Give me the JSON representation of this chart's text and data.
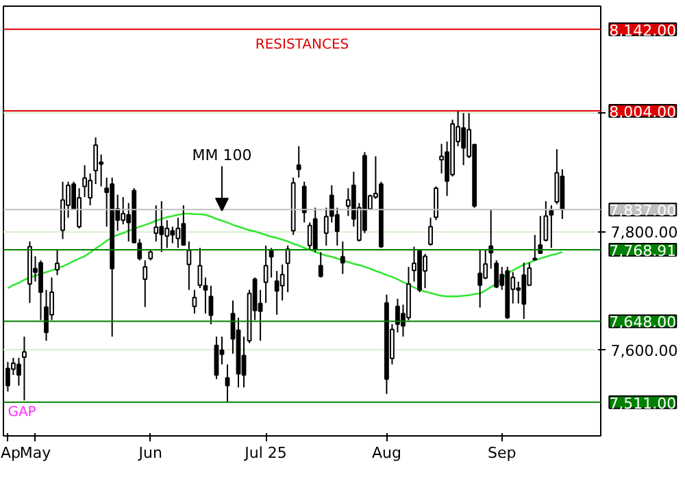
{
  "chart_data": {
    "type": "candlestick",
    "annotations": [
      "RESISTANCES",
      {
        "text": "GAP",
        "y": 7511
      }
    ],
    "categories": [
      "Ap",
      null,
      null,
      null,
      null,
      "May",
      null,
      null,
      null,
      null,
      null,
      null,
      null,
      null,
      null,
      null,
      null,
      null,
      null,
      null,
      null,
      null,
      null,
      null,
      null,
      null,
      "Jun",
      null,
      null,
      null,
      null,
      null,
      null,
      null,
      null,
      null,
      null,
      null,
      null,
      null,
      null,
      null,
      null,
      null,
      null,
      null,
      null,
      "Jul 25",
      null,
      null,
      null,
      null,
      null,
      null,
      null,
      null,
      null,
      null,
      null,
      null,
      null,
      null,
      null,
      null,
      null,
      null,
      null,
      null,
      null,
      "Aug",
      null,
      null,
      null,
      null,
      null,
      null,
      null,
      null,
      null,
      null,
      null,
      null,
      null,
      null,
      null,
      null,
      null,
      null,
      null,
      null,
      "Sep",
      null,
      null,
      null,
      null,
      null,
      null,
      null,
      null,
      null,
      null,
      null
    ],
    "ohlc": [
      [
        7568,
        7579,
        7529,
        7539
      ],
      [
        7567,
        7586,
        7557,
        7577
      ],
      [
        7575,
        7586,
        7539,
        7557
      ],
      [
        7587,
        7622,
        7514,
        7596
      ],
      [
        7711,
        7783,
        7679,
        7774
      ],
      [
        7737,
        7758,
        7715,
        7731
      ],
      [
        7747,
        7751,
        7650,
        7697
      ],
      [
        7672,
        7701,
        7615,
        7629
      ],
      [
        7659,
        7722,
        7650,
        7697
      ],
      [
        7735,
        7769,
        7726,
        7746
      ],
      [
        7802,
        7884,
        7787,
        7853
      ],
      [
        7844,
        7884,
        7823,
        7878
      ],
      [
        7880,
        7884,
        7837,
        7838
      ],
      [
        7808,
        7873,
        7805,
        7857
      ],
      [
        7876,
        7912,
        7858,
        7890
      ],
      [
        7857,
        7898,
        7844,
        7886
      ],
      [
        7903,
        7959,
        7880,
        7946
      ],
      [
        7917,
        7930,
        7876,
        7914
      ],
      [
        7873,
        7891,
        7808,
        7866
      ],
      [
        7880,
        7891,
        7622,
        7737
      ],
      [
        7838,
        7862,
        7801,
        7819
      ],
      [
        7819,
        7858,
        7812,
        7830
      ],
      [
        7828,
        7848,
        7783,
        7815
      ],
      [
        7869,
        7873,
        7780,
        7781
      ],
      [
        7780,
        7787,
        7751,
        7754
      ],
      [
        7719,
        7751,
        7672,
        7740
      ],
      [
        7754,
        7769,
        7751,
        7765
      ],
      [
        7797,
        7844,
        7783,
        7807
      ],
      [
        7808,
        7851,
        7765,
        7795
      ],
      [
        7792,
        7819,
        7772,
        7805
      ],
      [
        7801,
        7808,
        7780,
        7794
      ],
      [
        7788,
        7823,
        7772,
        7805
      ],
      [
        7813,
        7844,
        7776,
        7777
      ],
      [
        7744,
        7783,
        7701,
        7768
      ],
      [
        7673,
        7701,
        7661,
        7688
      ],
      [
        7709,
        7772,
        7704,
        7742
      ],
      [
        7708,
        7722,
        7661,
        7701
      ],
      [
        7690,
        7708,
        7643,
        7658
      ],
      [
        7607,
        7622,
        7550,
        7557
      ],
      [
        7599,
        7622,
        7575,
        7592
      ],
      [
        7552,
        7575,
        7511,
        7539
      ],
      [
        7661,
        7683,
        7593,
        7618
      ],
      [
        7633,
        7654,
        7536,
        7559
      ],
      [
        7590,
        7622,
        7536,
        7557
      ],
      [
        7615,
        7701,
        7611,
        7695
      ],
      [
        7719,
        7722,
        7650,
        7666
      ],
      [
        7678,
        7701,
        7615,
        7665
      ],
      [
        7714,
        7776,
        7679,
        7742
      ],
      [
        7767,
        7772,
        7722,
        7757
      ],
      [
        7716,
        7733,
        7659,
        7699
      ],
      [
        7708,
        7744,
        7683,
        7727
      ],
      [
        7746,
        7776,
        7697,
        7770
      ],
      [
        7801,
        7891,
        7794,
        7882
      ],
      [
        7912,
        7944,
        7891,
        7905
      ],
      [
        7876,
        7884,
        7815,
        7832
      ],
      [
        7776,
        7815,
        7769,
        7810
      ],
      [
        7821,
        7840,
        7765,
        7770
      ],
      [
        7742,
        7765,
        7722,
        7724
      ],
      [
        7797,
        7840,
        7776,
        7825
      ],
      [
        7861,
        7878,
        7815,
        7826
      ],
      [
        7828,
        7840,
        7776,
        7800
      ],
      [
        7757,
        7783,
        7728,
        7747
      ],
      [
        7843,
        7873,
        7826,
        7853
      ],
      [
        7878,
        7901,
        7808,
        7821
      ],
      [
        7785,
        7848,
        7783,
        7840
      ],
      [
        7928,
        7934,
        7797,
        7802
      ],
      [
        7838,
        7862,
        7837,
        7860
      ],
      [
        7858,
        7927,
        7855,
        7864
      ],
      [
        7880,
        7884,
        7772,
        7774
      ],
      [
        7679,
        7693,
        7525,
        7550
      ],
      [
        7585,
        7643,
        7575,
        7634
      ],
      [
        7673,
        7686,
        7629,
        7643
      ],
      [
        7661,
        7676,
        7622,
        7640
      ],
      [
        7654,
        7740,
        7650,
        7711
      ],
      [
        7734,
        7774,
        7715,
        7746
      ],
      [
        7767,
        7769,
        7697,
        7701
      ],
      [
        7733,
        7762,
        7704,
        7758
      ],
      [
        7778,
        7823,
        7776,
        7808
      ],
      [
        7824,
        7876,
        7819,
        7873
      ],
      [
        7921,
        7948,
        7898,
        7927
      ],
      [
        7934,
        7952,
        7860,
        7885
      ],
      [
        7896,
        7989,
        7893,
        7982
      ],
      [
        7952,
        8005,
        7944,
        7977
      ],
      [
        7975,
        8000,
        7912,
        7941
      ],
      [
        7927,
        8000,
        7924,
        7972
      ],
      [
        7947,
        7948,
        7840,
        7843
      ],
      [
        7729,
        7769,
        7671,
        7709
      ],
      [
        7721,
        7769,
        7719,
        7745
      ],
      [
        7775,
        7837,
        7737,
        7764
      ],
      [
        7746,
        7751,
        7704,
        7706
      ],
      [
        7727,
        7740,
        7701,
        7709
      ],
      [
        7733,
        7740,
        7652,
        7654
      ],
      [
        7702,
        7731,
        7678,
        7722
      ],
      [
        7704,
        7715,
        7678,
        7701
      ],
      [
        7726,
        7747,
        7652,
        7677
      ],
      [
        7709,
        7747,
        7708,
        7738
      ],
      [
        7752,
        7794,
        7751,
        7754
      ],
      [
        7777,
        7826,
        7762,
        7763
      ],
      [
        7785,
        7851,
        7783,
        7826
      ],
      [
        7835,
        7844,
        7772,
        7828
      ],
      [
        7850,
        7939,
        7846,
        7899
      ],
      [
        7893,
        7905,
        7821,
        7837
      ]
    ],
    "series": [
      {
        "type": "line",
        "name": "MM 100",
        "color": "#33e633",
        "values": [
          7704,
          7709,
          7713,
          7718,
          7722,
          7725,
          7728,
          7731,
          7734,
          7737,
          7741,
          7745,
          7750,
          7754,
          7758,
          7764,
          7771,
          7777,
          7784,
          7790,
          7794,
          7797,
          7801,
          7804,
          7808,
          7811,
          7814,
          7818,
          7821,
          7824,
          7826,
          7828,
          7830,
          7830,
          7829,
          7829,
          7828,
          7825,
          7821,
          7818,
          7815,
          7811,
          7808,
          7805,
          7802,
          7800,
          7797,
          7794,
          7791,
          7789,
          7786,
          7783,
          7779,
          7776,
          7772,
          7769,
          7765,
          7762,
          7759,
          7757,
          7754,
          7751,
          7748,
          7745,
          7743,
          7740,
          7737,
          7733,
          7730,
          7726,
          7723,
          7719,
          7714,
          7710,
          7705,
          7701,
          7698,
          7696,
          7693,
          7691,
          7690,
          7690,
          7690,
          7691,
          7692,
          7694,
          7695,
          7700,
          7706,
          7711,
          7720,
          7729,
          7734,
          7739,
          7744,
          7747,
          7751,
          7754,
          7757,
          7760,
          7762,
          7765
        ]
      }
    ],
    "ref_lines": [
      {
        "axis": "y",
        "value": 8142,
        "label": "8,142.00",
        "color": "#dd0000"
      },
      {
        "axis": "y",
        "value": 8004,
        "label": "8,004.00",
        "color": "#dd0000"
      },
      {
        "axis": "y",
        "value": 7837,
        "label": "7,837.00",
        "color": "#c0c0c0"
      },
      {
        "axis": "y",
        "value": 7768.91,
        "label": "7,768.91",
        "color": "#008000"
      },
      {
        "axis": "y",
        "value": 7648,
        "label": "7,648.00",
        "color": "#008000"
      },
      {
        "axis": "y",
        "value": 7511,
        "label": "7,511.00",
        "color": "#008000"
      }
    ],
    "ylim": [
      7454,
      8181
    ],
    "yticks": [
      {
        "value": 7600,
        "label": "7,600.00"
      },
      {
        "value": 7800,
        "label": "7,800.00"
      },
      {
        "value": 8000,
        "label": null
      }
    ],
    "grid": "y"
  }
}
